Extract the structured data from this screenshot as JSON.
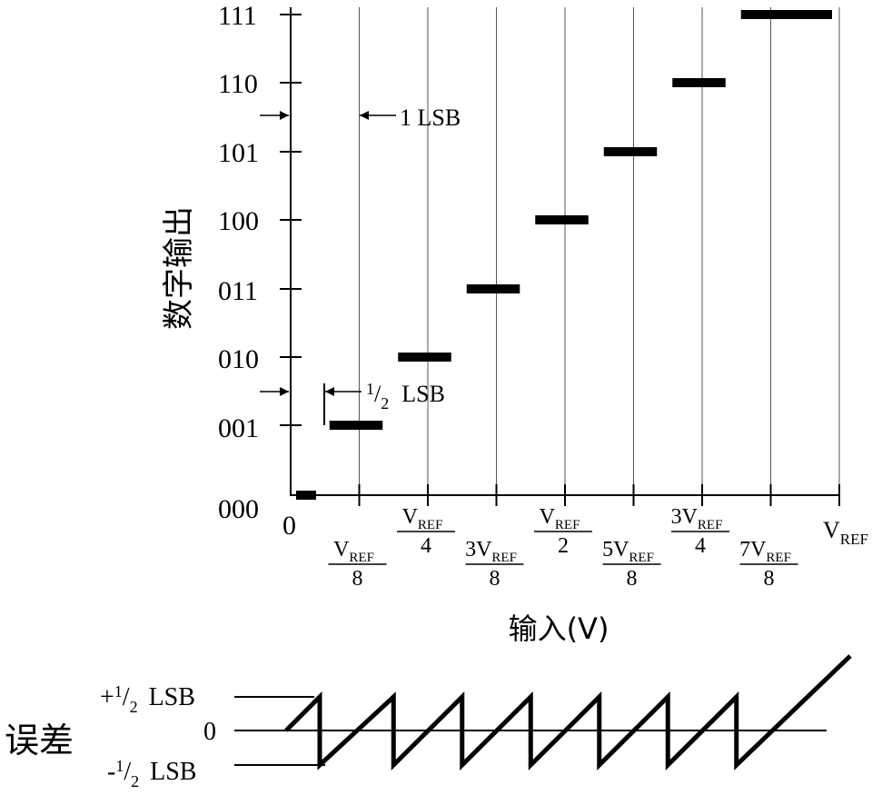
{
  "chart": {
    "y_axis_label": "数字输出",
    "x_axis_label": "输入(V)",
    "y_codes": [
      "000",
      "001",
      "010",
      "011",
      "100",
      "101",
      "110",
      "111"
    ],
    "x_origin_label": "0",
    "x_end_label": {
      "main": "V",
      "sub": "REF"
    },
    "fraction_labels": [
      {
        "num": "V",
        "sub": "REF",
        "den": "8"
      },
      {
        "num": "V",
        "sub": "REF",
        "den": "4"
      },
      {
        "num": "3V",
        "sub": "REF",
        "den": "8"
      },
      {
        "num": "V",
        "sub": "REF",
        "den": "2"
      },
      {
        "num": "5V",
        "sub": "REF",
        "den": "8"
      },
      {
        "num": "3V",
        "sub": "REF",
        "den": "4"
      },
      {
        "num": "7V",
        "sub": "REF",
        "den": "8"
      }
    ],
    "annotation_one_lsb": "1 LSB",
    "annotation_half_lsb": {
      "num": "1",
      "den": "2",
      "text": "LSB"
    }
  },
  "error_plot": {
    "y_label": "误差",
    "levels": [
      {
        "prefix": "+",
        "num": "1",
        "den": "2",
        "text": "LSB"
      },
      {
        "prefix": "",
        "num": "",
        "den": "",
        "text": "0"
      },
      {
        "prefix": "-",
        "num": "1",
        "den": "2",
        "text": "LSB"
      }
    ]
  },
  "chart_data": {
    "type": "line",
    "description_free": true,
    "x_unit": "V_REF fraction",
    "steps": [
      {
        "code": "000",
        "x_start": 0,
        "x_end": 0.0625
      },
      {
        "code": "001",
        "x_start": 0.0625,
        "x_end": 0.1875
      },
      {
        "code": "010",
        "x_start": 0.1875,
        "x_end": 0.3125
      },
      {
        "code": "011",
        "x_start": 0.3125,
        "x_end": 0.4375
      },
      {
        "code": "100",
        "x_start": 0.4375,
        "x_end": 0.5625
      },
      {
        "code": "101",
        "x_start": 0.5625,
        "x_end": 0.6875
      },
      {
        "code": "110",
        "x_start": 0.6875,
        "x_end": 0.8125
      },
      {
        "code": "111",
        "x_start": 0.8125,
        "x_end": 1.0
      }
    ],
    "x_ticks": [
      0,
      0.125,
      0.25,
      0.375,
      0.5,
      0.625,
      0.75,
      0.875,
      1.0
    ],
    "ylim": [
      0,
      7
    ]
  }
}
